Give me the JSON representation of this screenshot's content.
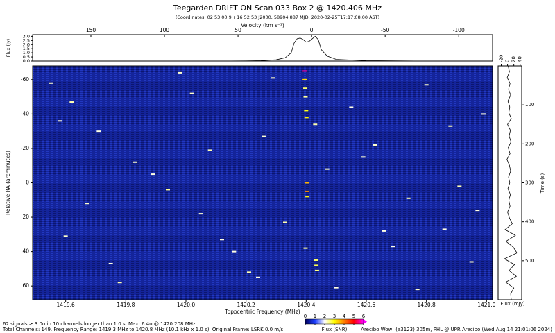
{
  "header": {
    "title": "Teegarden DRIFT ON Scan 033 Box 2 @ 1420.406 MHz",
    "subtitle": "(Coordinates:  02 53 00.9  +16 52 53 J2000, 58904.887 MJD, 2020-02-25T17:17:08.00 AST)"
  },
  "footer": {
    "line1": "62 signals ≥ 3.0σ in 10 channels longer than 1.0 s, Max: 6.4σ @ 1420.208 MHz",
    "line2": "Total Channels: 149. Frequency Range: 1419.3 MHz to 1420.8 MHz (10.1 kHz x 1.0 s). Original Frame: LSRK 0.0 m/s",
    "credit": "Arecibo Wow! (a3123) 305m, PHL @ UPR Arecibo (Wed Aug 14 21:01:06 2024)"
  },
  "chart_data": [
    {
      "type": "line",
      "ylabel": "Flux (Jy)",
      "x2label": "Velocity (km s⁻¹)",
      "color": "#000000",
      "x": [
        1419.5,
        1419.7,
        1419.9,
        1420.1,
        1420.2,
        1420.25,
        1420.3,
        1420.33,
        1420.35,
        1420.36,
        1420.37,
        1420.38,
        1420.39,
        1420.4,
        1420.41,
        1420.42,
        1420.43,
        1420.44,
        1420.45,
        1420.47,
        1420.5,
        1420.6,
        1420.8,
        1421.0
      ],
      "values": [
        0,
        0,
        0,
        0,
        0.02,
        0.05,
        0.15,
        0.4,
        1.0,
        2.2,
        2.7,
        2.8,
        2.6,
        2.3,
        2.4,
        2.7,
        3.0,
        2.6,
        1.4,
        0.6,
        0.2,
        0.05,
        0,
        0
      ],
      "xlim": [
        1419.49,
        1421.02
      ],
      "ylim": [
        0,
        3.2
      ],
      "yticks": [
        {
          "value": 0,
          "label": "0.0"
        },
        {
          "value": 0.5,
          "label": "0.5"
        },
        {
          "value": 1,
          "label": "1.0"
        },
        {
          "value": 1.5,
          "label": "1.5"
        },
        {
          "value": 2,
          "label": "2.0"
        },
        {
          "value": 2.5,
          "label": "2.5"
        },
        {
          "value": 3,
          "label": "3.0"
        }
      ],
      "x2lim": [
        189.6,
        -123
      ],
      "x2ticks": [
        150,
        100,
        50,
        0,
        -50,
        -100
      ]
    },
    {
      "type": "scatter",
      "xlabel": "Topocentric Frequency (MHz)",
      "ylabel": "Relative RA (arcminutes)",
      "background": "#14249a",
      "inverted_y": true,
      "xlim": [
        1419.49,
        1421.02
      ],
      "ylim": [
        -68,
        68
      ],
      "xticks": [
        1419.6,
        1419.8,
        {
          "value": 1420.0,
          "label": "1420.0"
        },
        1420.2,
        1420.4,
        1420.6,
        1420.8,
        {
          "value": 1421.0,
          "label": "1421.0"
        }
      ],
      "yticks": [
        -60,
        -40,
        -20,
        0,
        20,
        40,
        60
      ],
      "x": [
        1420.395,
        1420.395,
        1420.397,
        1420.398,
        1420.4,
        1420.401,
        1420.402,
        1420.403,
        1420.404,
        1420.432,
        1420.434,
        1420.436,
        1420.398,
        1420.43,
        1419.55,
        1419.62,
        1419.71,
        1419.83,
        1419.94,
        1420.05,
        1420.12,
        1420.21,
        1420.29,
        1420.55,
        1420.63,
        1420.74,
        1420.86,
        1420.95,
        1419.58,
        1419.67,
        1419.78,
        1419.89,
        1420.02,
        1420.16,
        1420.26,
        1420.33,
        1420.5,
        1420.59,
        1420.69,
        1420.8,
        1420.91,
        1420.99,
        1419.6,
        1419.75,
        1419.98,
        1420.08,
        1420.24,
        1420.47,
        1420.66,
        1420.77,
        1420.88,
        1420.97
      ],
      "y": [
        -65,
        -60,
        -55,
        -50,
        -42,
        -38,
        0,
        5,
        8,
        45,
        48,
        51,
        38,
        -34,
        -58,
        -47,
        -30,
        -12,
        4,
        18,
        33,
        52,
        -61,
        -44,
        -22,
        9,
        27,
        46,
        -36,
        12,
        58,
        -5,
        -52,
        40,
        -27,
        23,
        61,
        -15,
        37,
        -57,
        2,
        -40,
        31,
        47,
        -64,
        -19,
        55,
        -8,
        28,
        62,
        -33,
        16
      ],
      "values": [
        5.6,
        3.3,
        2.6,
        2.4,
        2.9,
        3.1,
        3.6,
        3.9,
        3.1,
        2.6,
        2.7,
        2.5,
        2.4,
        2.3,
        2.2,
        2.3,
        2.1,
        2.2,
        2.4,
        2.2,
        2.1,
        2.3,
        2.2,
        2.1,
        2.2,
        2.3,
        2.1,
        2.2,
        2.1,
        2.2,
        2.3,
        2.1,
        2.2,
        2.1,
        2.2,
        2.3,
        2.1,
        2.2,
        2.1,
        2.2,
        2.3,
        2.1,
        2.2,
        2.1,
        2.2,
        2.3,
        2.1,
        2.2,
        2.1,
        2.2,
        2.3,
        2.1
      ]
    },
    {
      "type": "line",
      "orientation": "vertical",
      "xlabel": "Flux (mJy)",
      "ylabel": "Time (s)",
      "color": "#000000",
      "time": [
        0,
        15,
        30,
        45,
        60,
        75,
        90,
        105,
        120,
        135,
        150,
        165,
        180,
        195,
        210,
        225,
        240,
        255,
        270,
        285,
        300,
        315,
        330,
        345,
        360,
        375,
        390,
        405,
        420,
        435,
        450,
        465,
        480,
        495,
        510,
        525,
        540,
        555,
        570,
        585,
        600
      ],
      "values": [
        2,
        6,
        -1,
        8,
        3,
        10,
        1,
        7,
        4,
        12,
        0,
        9,
        5,
        11,
        2,
        8,
        -2,
        6,
        10,
        3,
        7,
        1,
        9,
        4,
        8,
        0,
        6,
        15,
        -8,
        25,
        -5,
        18,
        30,
        -10,
        22,
        5,
        28,
        -6,
        20,
        10,
        12
      ],
      "xlim": [
        -30,
        45
      ],
      "ylim": [
        0,
        600
      ],
      "xticks": [
        -20,
        0,
        20,
        40
      ],
      "yticks": [
        100,
        200,
        300,
        400,
        500
      ]
    },
    {
      "type": "colorbar",
      "label": "Flux (SNR)",
      "lim": [
        0,
        6
      ],
      "ticks": [
        0,
        1,
        2,
        3,
        4,
        5,
        6
      ],
      "colors": [
        "#00005a",
        "#1a3cff",
        "#ffffff",
        "#ffff00",
        "#ff8000",
        "#ff0000",
        "#ff00ff"
      ]
    }
  ]
}
